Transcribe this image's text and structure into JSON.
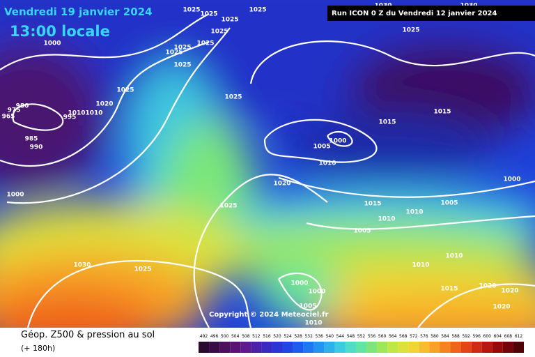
{
  "header": {
    "date": "Vendredi 19 janvier 2024",
    "time": "13:00 locale",
    "run": "Run ICON 0 Z du Vendredi 12 janvier 2024"
  },
  "copyright": "Copyright © 2024 Meteociel.fr",
  "footer": {
    "title": "Géop. Z500 & pression au sol",
    "lead": "(+ 180h)"
  },
  "scale": {
    "values": [
      492,
      496,
      500,
      504,
      508,
      512,
      516,
      520,
      524,
      528,
      532,
      536,
      540,
      544,
      548,
      552,
      556,
      560,
      564,
      568,
      572,
      576,
      580,
      584,
      588,
      592,
      596,
      600,
      604,
      608,
      612
    ],
    "colors": [
      "#2a0a2e",
      "#3a0c45",
      "#4b0f5e",
      "#5a1275",
      "#5e1a90",
      "#4a22a8",
      "#3a2bc0",
      "#2a35d6",
      "#1f45e6",
      "#1c5cf0",
      "#1f78f2",
      "#2594ef",
      "#2eb0ea",
      "#3ccbe2",
      "#4fdcc8",
      "#62e4a2",
      "#7ce67a",
      "#9de85a",
      "#bfe847",
      "#dde23a",
      "#f2d532",
      "#f8bd2c",
      "#f8a126",
      "#f58320",
      "#ef641b",
      "#e44516",
      "#d22a12",
      "#b8160f",
      "#960a0c",
      "#72040a",
      "#500208"
    ]
  },
  "isobar_labels": [
    "1025",
    "1025",
    "1025",
    "1025",
    "1025",
    "1025",
    "1025",
    "1025",
    "1025",
    "1025",
    "1025",
    "1025",
    "1000",
    "980",
    "975",
    "965",
    "985",
    "990",
    "1020",
    "1010",
    "1010",
    "995",
    "1000",
    "1025",
    "1030",
    "1025",
    "1020",
    "1005",
    "1000",
    "1010",
    "1015",
    "1015",
    "1000",
    "1015",
    "1005",
    "1010",
    "1010",
    "1005",
    "1010",
    "1010",
    "1015",
    "1020",
    "1020",
    "1020",
    "1000",
    "1000",
    "1005",
    "1010",
    "1030",
    "1030"
  ]
}
